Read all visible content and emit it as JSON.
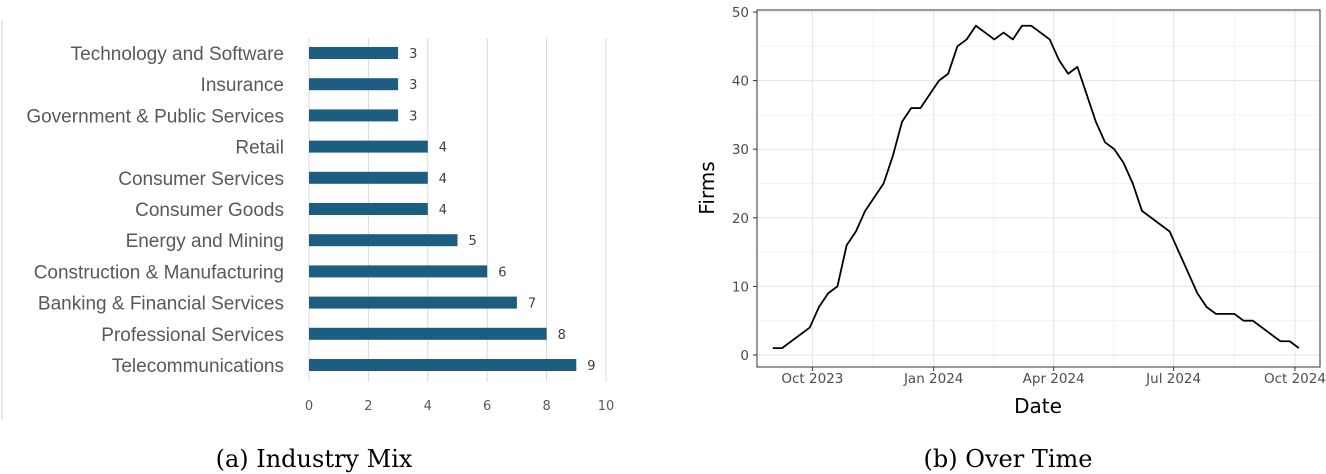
{
  "chart_data": [
    {
      "type": "bar",
      "orientation": "horizontal",
      "caption": "(a) Industry Mix",
      "categories": [
        "Technology and Software",
        "Insurance",
        "Government & Public Services",
        "Retail",
        "Consumer Services",
        "Consumer Goods",
        "Energy and Mining",
        "Construction & Manufacturing",
        "Banking & Financial Services",
        "Professional Services",
        "Telecommunications"
      ],
      "values": [
        3,
        3,
        3,
        4,
        4,
        4,
        5,
        6,
        7,
        8,
        9
      ],
      "xlim": [
        0,
        10
      ],
      "xticks": [
        "0",
        "2",
        "4",
        "6",
        "8",
        "10"
      ],
      "grid": true,
      "bar_color": "#1b5e82"
    },
    {
      "type": "line",
      "caption": "(b) Over Time",
      "xlabel": "Date",
      "ylabel": "Firms",
      "ylim": [
        0,
        50
      ],
      "yticks": [
        "0",
        "10",
        "20",
        "30",
        "40",
        "50"
      ],
      "xticks": [
        {
          "label": "Oct 2023",
          "date": "2023-10-01"
        },
        {
          "label": "Jan 2024",
          "date": "2024-01-01"
        },
        {
          "label": "Apr 2024",
          "date": "2024-04-01"
        },
        {
          "label": "Jul 2024",
          "date": "2024-07-01"
        },
        {
          "label": "Oct 2024",
          "date": "2024-10-01"
        }
      ],
      "xlim": [
        "2023-08-20",
        "2024-10-20"
      ],
      "grid": true,
      "line_color": "#000000",
      "series": [
        {
          "x": [
            "2023-09-01",
            "2023-09-08",
            "2023-09-29",
            "2023-10-06",
            "2023-10-13",
            "2023-10-20",
            "2023-10-27",
            "2023-11-03",
            "2023-11-10",
            "2023-11-17",
            "2023-11-24",
            "2023-12-01",
            "2023-12-08",
            "2023-12-15",
            "2023-12-22",
            "2023-12-29",
            "2024-01-05",
            "2024-01-12",
            "2024-01-19",
            "2024-01-26",
            "2024-02-02",
            "2024-02-09",
            "2024-02-16",
            "2024-02-23",
            "2024-03-01",
            "2024-03-08",
            "2024-03-15",
            "2024-03-22",
            "2024-03-29",
            "2024-04-05",
            "2024-04-12",
            "2024-04-19",
            "2024-04-26",
            "2024-05-03",
            "2024-05-10",
            "2024-05-17",
            "2024-05-24",
            "2024-05-31",
            "2024-06-07",
            "2024-06-28",
            "2024-07-05",
            "2024-07-12",
            "2024-07-19",
            "2024-07-26",
            "2024-08-02",
            "2024-08-16",
            "2024-08-23",
            "2024-08-30",
            "2024-09-13",
            "2024-09-20",
            "2024-09-27",
            "2024-10-04"
          ],
          "y": [
            1,
            1,
            4,
            7,
            9,
            10,
            16,
            18,
            21,
            23,
            25,
            29,
            34,
            36,
            36,
            38,
            40,
            41,
            45,
            46,
            48,
            47,
            46,
            47,
            46,
            48,
            48,
            47,
            46,
            43,
            41,
            42,
            38,
            34,
            31,
            30,
            28,
            25,
            21,
            18,
            15,
            12,
            9,
            7,
            6,
            6,
            5,
            5,
            3,
            2,
            2,
            1
          ]
        }
      ]
    }
  ]
}
